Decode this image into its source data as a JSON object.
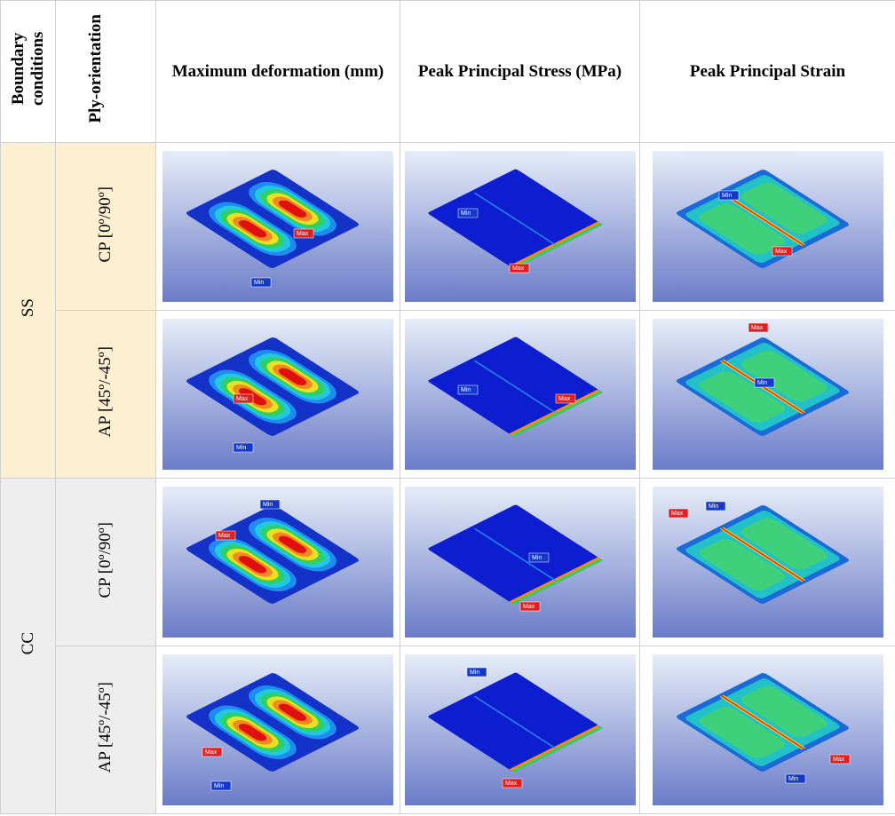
{
  "header": {
    "columns": [
      "Boundary conditions",
      "Ply-orientation",
      "Maximum deformation (mm)",
      "Peak Principal Stress (MPa)",
      "Peak Principal Strain"
    ]
  },
  "table": {
    "groups": [
      {
        "boundary": "SS",
        "rows": [
          {
            "ply": "CP [0º/90º]",
            "plots": [
              {
                "min": "Min",
                "max": "Max"
              },
              {
                "min": "Min",
                "max": "Max"
              },
              {
                "min": "Min",
                "max": "Max"
              }
            ]
          },
          {
            "ply": "AP [45º/-45º]",
            "plots": [
              {
                "min": "Min",
                "max": "Max"
              },
              {
                "min": "Min",
                "max": "Max"
              },
              {
                "min": "Min",
                "max": "Max"
              }
            ]
          }
        ]
      },
      {
        "boundary": "CC",
        "rows": [
          {
            "ply": "CP [0º/90º]",
            "plots": [
              {
                "min": "Min",
                "max": "Max"
              },
              {
                "min": "Min",
                "max": "Max"
              },
              {
                "min": "Min",
                "max": "Max"
              }
            ]
          },
          {
            "ply": "AP [45º/-45º]",
            "plots": [
              {
                "min": "Min",
                "max": "Max"
              },
              {
                "min": "Min",
                "max": "Max"
              },
              {
                "min": "Min",
                "max": "Max"
              }
            ]
          }
        ]
      }
    ]
  }
}
